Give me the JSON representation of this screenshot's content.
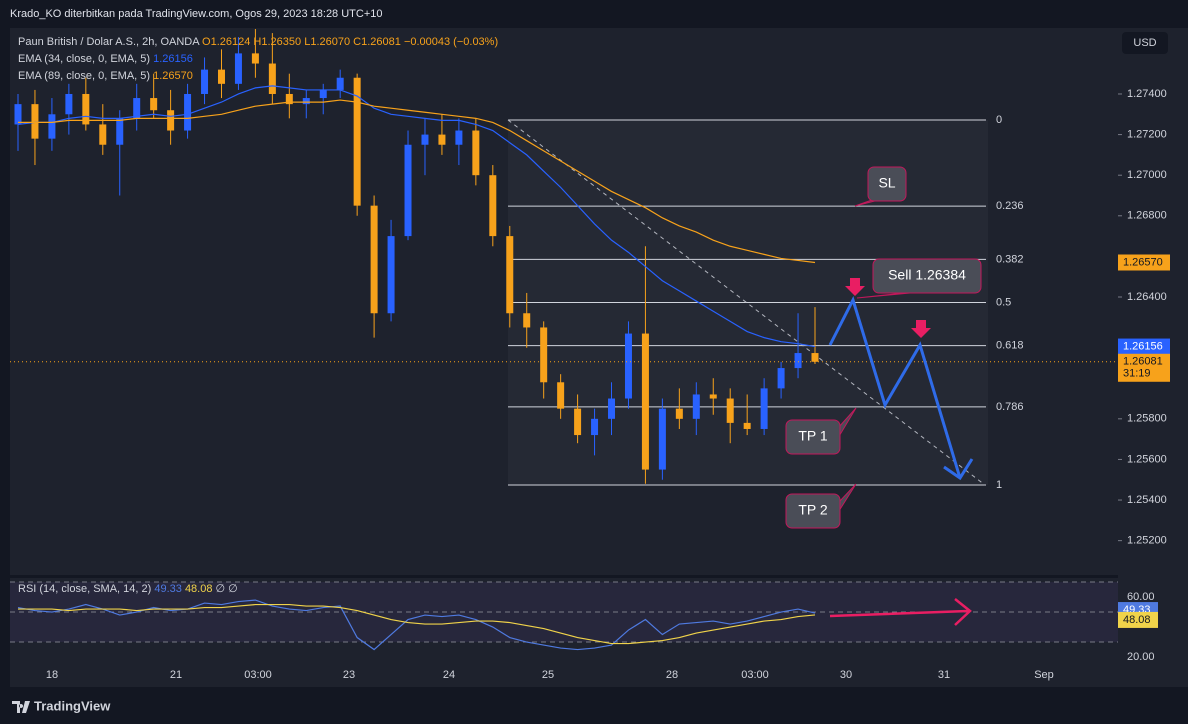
{
  "chart_data": {
    "type": "candlestick",
    "author": "Krado_KO diterbitkan pada TradingView.com, Ogos 29, 2023 18:28 UTC+10",
    "symbol": "Paun British / Dolar A.S., 2h, OANDA",
    "ohlc": [
      "O1.26124",
      "H1.26350",
      "L1.26070",
      "C1.26081",
      "−0.00043 (−0.03%)"
    ],
    "currency": "USD",
    "up_color": "#2962ff",
    "down_color": "#f7a21b",
    "open": [
      1.2725,
      1.2735,
      1.2718,
      1.273,
      1.274,
      1.2725,
      1.2715,
      1.2728,
      1.2738,
      1.2732,
      1.2722,
      1.274,
      1.2752,
      1.2745,
      1.276,
      1.2755,
      1.274,
      1.2735,
      1.2738,
      1.2742,
      1.2748,
      1.2685,
      1.2632,
      1.267,
      1.2715,
      1.272,
      1.2715,
      1.2722,
      1.27,
      1.267,
      1.2632,
      1.2625,
      1.2598,
      1.2585,
      1.2572,
      1.258,
      1.259,
      1.2622,
      1.2555,
      1.2585,
      1.258,
      1.2592,
      1.259,
      1.2578,
      1.2575,
      1.2595,
      1.2605,
      1.26124
    ],
    "high": [
      1.274,
      1.2742,
      1.2738,
      1.2745,
      1.2748,
      1.2735,
      1.2732,
      1.2745,
      1.275,
      1.2742,
      1.2745,
      1.2758,
      1.2762,
      1.2768,
      1.2772,
      1.277,
      1.275,
      1.2742,
      1.2745,
      1.2752,
      1.275,
      1.269,
      1.2678,
      1.2722,
      1.2728,
      1.273,
      1.2728,
      1.2728,
      1.2705,
      1.2675,
      1.2642,
      1.2628,
      1.2602,
      1.2592,
      1.2585,
      1.2598,
      1.2628,
      1.2665,
      1.259,
      1.2595,
      1.2598,
      1.26,
      1.2595,
      1.2592,
      1.26,
      1.2608,
      1.2632,
      1.2635
    ],
    "low": [
      1.2712,
      1.2705,
      1.2712,
      1.272,
      1.2722,
      1.271,
      1.269,
      1.2722,
      1.2728,
      1.2715,
      1.2718,
      1.2735,
      1.2738,
      1.2742,
      1.2748,
      1.2735,
      1.2728,
      1.2728,
      1.273,
      1.2738,
      1.268,
      1.262,
      1.2628,
      1.2668,
      1.27,
      1.271,
      1.2705,
      1.2695,
      1.2665,
      1.2625,
      1.2615,
      1.259,
      1.258,
      1.2568,
      1.2562,
      1.2572,
      1.2585,
      1.2548,
      1.255,
      1.2575,
      1.2572,
      1.2582,
      1.2568,
      1.2572,
      1.2572,
      1.259,
      1.26,
      1.2607
    ],
    "close": [
      1.2735,
      1.2718,
      1.273,
      1.274,
      1.2725,
      1.2715,
      1.2728,
      1.2738,
      1.2732,
      1.2722,
      1.274,
      1.2752,
      1.2745,
      1.276,
      1.2755,
      1.274,
      1.2735,
      1.2738,
      1.2742,
      1.2748,
      1.2685,
      1.2632,
      1.267,
      1.2715,
      1.272,
      1.2715,
      1.2722,
      1.27,
      1.267,
      1.2632,
      1.2625,
      1.2598,
      1.2585,
      1.2572,
      1.258,
      1.259,
      1.2622,
      1.2555,
      1.2585,
      1.258,
      1.2592,
      1.259,
      1.2578,
      1.2575,
      1.2595,
      1.2605,
      1.26124,
      1.26081
    ],
    "close_label": "1.26081",
    "countdown": "31:19",
    "series": [
      {
        "name": "EMA (34, close, 0, EMA, 5)",
        "color": "#2962ff",
        "last_label": "1.26156",
        "values": [
          1.2725,
          1.2726,
          1.2726,
          1.2728,
          1.2729,
          1.2728,
          1.2728,
          1.2729,
          1.273,
          1.2729,
          1.273,
          1.2733,
          1.2736,
          1.274,
          1.2743,
          1.2744,
          1.2743,
          1.2742,
          1.2742,
          1.2742,
          1.2739,
          1.2733,
          1.273,
          1.2729,
          1.2728,
          1.2727,
          1.2727,
          1.2725,
          1.2722,
          1.2716,
          1.271,
          1.2702,
          1.2694,
          1.2685,
          1.2676,
          1.2668,
          1.2662,
          1.2655,
          1.2648,
          1.2643,
          1.2638,
          1.2633,
          1.2628,
          1.2623,
          1.262,
          1.2618,
          1.2617,
          1.26156
        ]
      },
      {
        "name": "EMA (89, close, 0, EMA, 5)",
        "color": "#f7a21b",
        "last_label": "1.26570",
        "values": [
          1.2726,
          1.2726,
          1.2726,
          1.2727,
          1.2727,
          1.2727,
          1.2727,
          1.2728,
          1.2728,
          1.2728,
          1.2728,
          1.2729,
          1.273,
          1.2732,
          1.2734,
          1.2735,
          1.2736,
          1.2736,
          1.2736,
          1.2737,
          1.2736,
          1.2734,
          1.2733,
          1.2732,
          1.2731,
          1.273,
          1.2729,
          1.2728,
          1.2726,
          1.2722,
          1.2717,
          1.2712,
          1.2707,
          1.2702,
          1.2697,
          1.2692,
          1.2688,
          1.2684,
          1.2679,
          1.2675,
          1.2672,
          1.2668,
          1.2665,
          1.2663,
          1.2661,
          1.2659,
          1.2658,
          1.2657
        ]
      }
    ],
    "ylim": [
      1.25016,
      1.27725
    ],
    "yticks": [
      {
        "value": 1.274,
        "label": "1.27400"
      },
      {
        "value": 1.272,
        "label": "1.27200"
      },
      {
        "value": 1.27,
        "label": "1.27000"
      },
      {
        "value": 1.268,
        "label": "1.26800"
      },
      {
        "value": 1.264,
        "label": "1.26400"
      },
      {
        "value": 1.258,
        "label": "1.25800"
      },
      {
        "value": 1.256,
        "label": "1.25600"
      },
      {
        "value": 1.254,
        "label": "1.25400"
      },
      {
        "value": 1.252,
        "label": "1.25200"
      }
    ],
    "xlabels": [
      "18",
      "21",
      "03:00",
      "23",
      "24",
      "25",
      "28",
      "03:00",
      "30",
      "31",
      "Sep"
    ],
    "fib": {
      "start": 1.27272,
      "end": 1.25474,
      "levels": [
        0,
        0.236,
        0.382,
        0.5,
        0.618,
        0.786,
        1
      ]
    },
    "annotations": [
      "SL",
      "Sell 1.26384",
      "TP 1",
      "TP 2"
    ],
    "rsi": {
      "title": "RSI (14, close, SMA, 14, 2)",
      "extra": "∅ ∅",
      "color": "#4f7ae0",
      "ma_color": "#f0d34a",
      "values": [
        53,
        51,
        50,
        52,
        55,
        52,
        48,
        50,
        53,
        51,
        52,
        56,
        55,
        57,
        58,
        54,
        52,
        51,
        53,
        54,
        33,
        25,
        35,
        45,
        48,
        47,
        48,
        45,
        40,
        33,
        30,
        28,
        26,
        25,
        26,
        28,
        38,
        45,
        35,
        42,
        43,
        44,
        42,
        44,
        47,
        50,
        52,
        49.33
      ],
      "ma": [
        52,
        52,
        52,
        51,
        52,
        52,
        52,
        51,
        52,
        52,
        52,
        53,
        53,
        54,
        55,
        55,
        55,
        54,
        54,
        53,
        51,
        48,
        45,
        43,
        42,
        42,
        43,
        44,
        44,
        43,
        41,
        39,
        36,
        33,
        31,
        29,
        29,
        30,
        31,
        33,
        36,
        38,
        40,
        42,
        44,
        45,
        47,
        48.08
      ],
      "ylim": [
        16.7,
        72.7
      ],
      "bands": [
        70,
        50,
        30
      ],
      "yticks": [
        {
          "value": 60,
          "label": "60.00"
        },
        {
          "value": 20,
          "label": "20.00"
        }
      ]
    },
    "brand": "TradingView"
  }
}
